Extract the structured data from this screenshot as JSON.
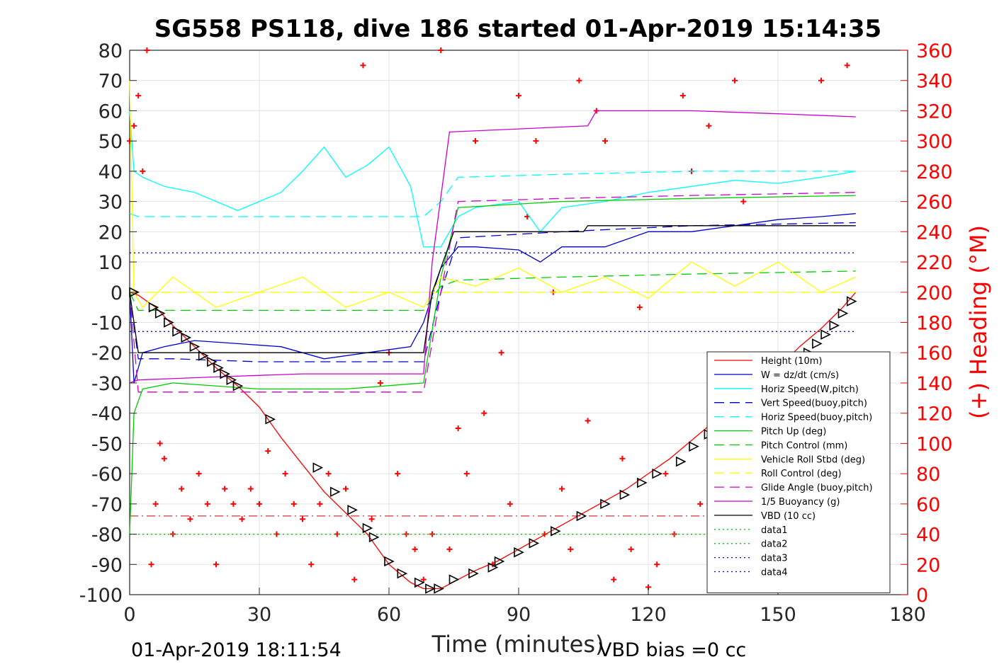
{
  "title": "SG558 PS118, dive 186 started 01-Apr-2019 15:14:35",
  "footer_left": "01-Apr-2019 18:11:54",
  "footer_right": "VBD bias =0 cc",
  "chart_data": {
    "type": "line",
    "title": "SG558 PS118, dive 186 started 01-Apr-2019 15:14:35",
    "xlabel": "Time (minutes)",
    "ylabel": "",
    "ylabel_right": "(+) Heading (°M)",
    "xlim": [
      0,
      180
    ],
    "ylim": [
      -100,
      80
    ],
    "ylim_right": [
      0,
      360
    ],
    "xticks": [
      "0",
      "30",
      "60",
      "90",
      "120",
      "150",
      "180"
    ],
    "yticks": [
      "-100",
      "-90",
      "-80",
      "-70",
      "-60",
      "-50",
      "-40",
      "-30",
      "-20",
      "-10",
      "0",
      "10",
      "20",
      "30",
      "40",
      "50",
      "60",
      "70",
      "80"
    ],
    "yticks_right": [
      "0",
      "20",
      "40",
      "60",
      "80",
      "100",
      "120",
      "140",
      "160",
      "180",
      "200",
      "220",
      "240",
      "260",
      "280",
      "300",
      "320",
      "340",
      "360"
    ],
    "grid": true,
    "legend_position": "bottom-right",
    "series": [
      {
        "name": "Height (10m)",
        "color": "#ff0000",
        "style": "solid",
        "x": [
          0,
          2,
          6,
          10,
          15,
          20,
          25,
          30,
          35,
          40,
          45,
          50,
          55,
          60,
          65,
          68,
          72,
          76,
          80,
          85,
          90,
          95,
          100,
          105,
          110,
          115,
          120,
          125,
          130,
          135,
          140,
          145,
          150,
          155,
          160,
          165,
          168
        ],
        "values": [
          0,
          -1,
          -5,
          -11,
          -18,
          -25,
          -31,
          -38,
          -48,
          -57,
          -66,
          -73,
          -80,
          -90,
          -96,
          -98,
          -98,
          -95,
          -92,
          -89,
          -85,
          -81,
          -77,
          -73,
          -69,
          -65,
          -60,
          -55,
          -49,
          -43,
          -37,
          -31,
          -25,
          -18,
          -12,
          -5,
          0
        ]
      },
      {
        "name": "W = dz/dt (cm/s)",
        "color": "#0000cc",
        "style": "solid",
        "x": [
          0,
          1,
          3,
          8,
          15,
          25,
          35,
          45,
          55,
          65,
          68,
          72,
          76,
          80,
          90,
          95,
          100,
          110,
          120,
          130,
          140,
          150,
          160,
          168
        ],
        "values": [
          0,
          -30,
          -20,
          -18,
          -16,
          -17,
          -18,
          -22,
          -20,
          -18,
          -10,
          8,
          15,
          15,
          14,
          10,
          15,
          15,
          20,
          20,
          22,
          24,
          25,
          26
        ]
      },
      {
        "name": "Horiz Speed(W,pitch)",
        "color": "#00ffff",
        "style": "solid",
        "x": [
          0,
          1,
          3,
          8,
          15,
          25,
          35,
          40,
          45,
          50,
          55,
          60,
          65,
          68,
          72,
          76,
          80,
          90,
          95,
          100,
          110,
          120,
          130,
          140,
          150,
          160,
          168
        ],
        "values": [
          60,
          40,
          38,
          35,
          33,
          27,
          33,
          40,
          48,
          38,
          42,
          48,
          35,
          15,
          15,
          25,
          28,
          30,
          20,
          28,
          30,
          33,
          35,
          37,
          36,
          38,
          40
        ]
      },
      {
        "name": "Vert Speed(buoy,pitch)",
        "color": "#0000cc",
        "style": "dashed",
        "x": [
          0,
          2,
          10,
          30,
          50,
          68,
          72,
          76,
          100,
          130,
          168
        ],
        "values": [
          0,
          -22,
          -22,
          -23,
          -23,
          -23,
          0,
          18,
          20,
          22,
          23
        ]
      },
      {
        "name": "Horiz Speed(buoy,pitch)",
        "color": "#00ffff",
        "style": "dashed",
        "x": [
          0,
          2,
          10,
          30,
          50,
          68,
          72,
          76,
          100,
          130,
          168
        ],
        "values": [
          26,
          25,
          25,
          25,
          25,
          25,
          30,
          38,
          39,
          40,
          40
        ]
      },
      {
        "name": "Pitch Up (deg)",
        "color": "#00cc00",
        "style": "solid",
        "x": [
          0,
          1,
          3,
          10,
          30,
          50,
          68,
          72,
          76,
          100,
          130,
          168
        ],
        "values": [
          -80,
          -40,
          -32,
          -30,
          -32,
          -32,
          -30,
          5,
          28,
          30,
          31,
          32
        ]
      },
      {
        "name": "Pitch Control (mm)",
        "color": "#00cc00",
        "style": "dashed",
        "x": [
          0,
          2,
          10,
          30,
          50,
          68,
          72,
          76,
          100,
          130,
          168
        ],
        "values": [
          0,
          -6,
          -6,
          -6,
          -6,
          -6,
          2,
          4,
          5,
          6,
          7
        ]
      },
      {
        "name": "Vehicle Roll Stbd (deg)",
        "color": "#ffff00",
        "style": "solid",
        "x": [
          0,
          1,
          3,
          10,
          20,
          30,
          40,
          50,
          60,
          68,
          72,
          80,
          90,
          100,
          110,
          120,
          130,
          140,
          150,
          160,
          168
        ],
        "values": [
          70,
          0,
          -5,
          5,
          -5,
          0,
          5,
          -5,
          0,
          -5,
          5,
          2,
          8,
          0,
          5,
          -2,
          10,
          2,
          10,
          0,
          5
        ]
      },
      {
        "name": "Roll Control (deg)",
        "color": "#ffff00",
        "style": "dashed",
        "x": [
          0,
          2,
          168
        ],
        "values": [
          0,
          0,
          0
        ]
      },
      {
        "name": "Glide Angle (buoy,pitch)",
        "color": "#cc00cc",
        "style": "dashed",
        "x": [
          0,
          2,
          10,
          30,
          50,
          68,
          72,
          76,
          100,
          130,
          168
        ],
        "values": [
          0,
          -33,
          -33,
          -33,
          -33,
          -33,
          0,
          30,
          31,
          32,
          33
        ]
      },
      {
        "name": "1/5 Buoyancy (g)",
        "color": "#cc00cc",
        "style": "solid",
        "x": [
          0,
          2,
          20,
          40,
          68,
          70,
          74,
          90,
          106,
          108,
          130,
          150,
          168
        ],
        "values": [
          -30,
          -29,
          -28,
          -27,
          -27,
          10,
          53,
          54,
          55,
          60,
          60,
          59,
          58
        ]
      },
      {
        "name": "VBD (10 cc)",
        "color": "#000000",
        "style": "solid",
        "x": [
          0,
          2,
          68,
          70,
          75,
          105,
          106,
          168
        ],
        "values": [
          0,
          -20,
          -20,
          0,
          20,
          20,
          22,
          22
        ]
      },
      {
        "name": "data1",
        "color": "#00cc00",
        "style": "dotted",
        "x": [
          0,
          168
        ],
        "values": [
          -80,
          -80
        ]
      },
      {
        "name": "data2",
        "color": "#00cc00",
        "style": "dotted",
        "x": [
          0,
          168
        ],
        "values": [
          -80,
          -80
        ]
      },
      {
        "name": "data3",
        "color": "#0000cc",
        "style": "dotted",
        "x": [
          0,
          168
        ],
        "values": [
          13,
          13
        ]
      },
      {
        "name": "data4",
        "color": "#0000cc",
        "style": "dotted",
        "x": [
          0,
          168
        ],
        "values": [
          -13,
          -13
        ]
      }
    ],
    "reference_lines": [
      {
        "y": -74,
        "color": "#cc0000",
        "style": "dashdot"
      }
    ],
    "markers": {
      "name": "depth markers",
      "color": "#000000",
      "x": [
        1,
        5.5,
        7,
        9,
        11,
        13,
        15,
        17,
        19,
        20.5,
        22,
        23.5,
        25,
        32.5,
        43.5,
        47.5,
        51.5,
        55,
        56.5,
        60,
        63,
        67,
        69.5,
        71.5,
        75,
        79.5,
        84,
        85.5,
        90,
        93.5,
        98.5,
        104.5,
        110,
        114.5,
        118.5,
        122,
        127.5,
        130.5,
        134,
        137,
        141,
        144,
        148,
        151,
        153,
        155,
        157,
        159,
        161,
        163,
        165,
        167
      ],
      "values": [
        0,
        -5,
        -7,
        -10,
        -13,
        -15,
        -18,
        -21,
        -23,
        -25,
        -27,
        -29,
        -31,
        -42,
        -58,
        -66,
        -72,
        -78,
        -81,
        -89,
        -93,
        -96,
        -98,
        -98,
        -95,
        -93,
        -91,
        -89,
        -86,
        -83,
        -79,
        -74,
        -70,
        -67,
        -63,
        -60,
        -56,
        -51,
        -47,
        -44,
        -40,
        -36,
        -32,
        -28,
        -25,
        -23,
        -20,
        -17,
        -14,
        -11,
        -7,
        -3
      ]
    },
    "heading_scatter": {
      "name": "(+) Heading (°M)",
      "color": "#ff0000",
      "marker": "+",
      "axis": "right",
      "x": [
        0,
        1,
        2,
        3,
        4,
        5,
        6,
        7,
        8,
        10,
        12,
        14,
        16,
        18,
        20,
        22,
        24,
        26,
        28,
        30,
        32,
        34,
        36,
        38,
        40,
        42,
        44,
        46,
        48,
        50,
        52,
        54,
        56,
        58,
        60,
        62,
        64,
        66,
        68,
        70,
        72,
        74,
        76,
        78,
        80,
        82,
        84,
        86,
        88,
        90,
        92,
        94,
        96,
        98,
        100,
        102,
        104,
        106,
        108,
        110,
        112,
        114,
        116,
        118,
        120,
        122,
        124,
        126,
        128,
        130,
        132,
        134,
        136,
        138,
        140,
        142,
        144,
        146,
        148,
        150,
        152,
        154,
        156,
        158,
        160,
        162,
        164,
        166
      ],
      "values": [
        300,
        310,
        330,
        280,
        360,
        20,
        60,
        100,
        90,
        40,
        70,
        50,
        80,
        60,
        20,
        70,
        60,
        50,
        70,
        60,
        95,
        40,
        80,
        60,
        50,
        20,
        60,
        80,
        40,
        70,
        10,
        350,
        50,
        140,
        160,
        80,
        40,
        30,
        10,
        40,
        360,
        30,
        110,
        80,
        300,
        120,
        20,
        160,
        60,
        330,
        250,
        300,
        40,
        200,
        70,
        30,
        340,
        115,
        320,
        300,
        10,
        90,
        30,
        190,
        5,
        20,
        80,
        40,
        330,
        280,
        60,
        310,
        20,
        90,
        340,
        260,
        10,
        50,
        30,
        40,
        10,
        70,
        30,
        20,
        340,
        30,
        10,
        350
      ]
    }
  }
}
